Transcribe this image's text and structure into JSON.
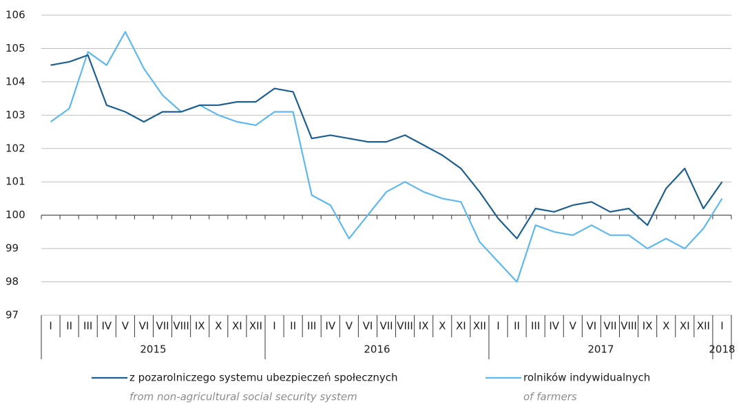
{
  "chart_data": {
    "type": "line",
    "categories": [
      "I",
      "II",
      "III",
      "IV",
      "V",
      "VI",
      "VII",
      "VIII",
      "IX",
      "X",
      "XI",
      "XII",
      "I",
      "II",
      "III",
      "IV",
      "V",
      "VI",
      "VII",
      "VIII",
      "IX",
      "X",
      "XI",
      "XII",
      "I",
      "II",
      "III",
      "IV",
      "V",
      "VI",
      "VII",
      "VIII",
      "IX",
      "X",
      "XI",
      "XII",
      "I"
    ],
    "years": [
      "2015",
      "2016",
      "2017",
      "2018"
    ],
    "series": [
      {
        "name": "z pozarolniczego systemu ubezpieczeń społecznych",
        "subtitle": "from non-agricultural social security system",
        "color": "#1b5e8f",
        "values": [
          104.5,
          104.6,
          104.8,
          103.3,
          103.1,
          102.8,
          103.1,
          103.1,
          103.3,
          103.3,
          103.4,
          103.4,
          103.8,
          103.7,
          102.3,
          102.4,
          102.3,
          102.2,
          102.2,
          102.4,
          102.1,
          101.8,
          101.4,
          100.7,
          99.9,
          99.3,
          100.2,
          100.1,
          100.3,
          100.4,
          100.1,
          100.2,
          99.7,
          100.8,
          101.4,
          100.2,
          101.0
        ]
      },
      {
        "name": "rolników indywidualnych",
        "subtitle": "of farmers",
        "color": "#5cb8ee",
        "values": [
          102.8,
          103.2,
          104.9,
          104.5,
          105.5,
          104.4,
          103.6,
          103.1,
          103.3,
          103.0,
          102.8,
          102.7,
          103.1,
          103.1,
          100.6,
          100.3,
          99.3,
          100.0,
          100.7,
          101.0,
          100.7,
          100.5,
          100.4,
          99.2,
          98.6,
          98.0,
          99.7,
          99.5,
          99.4,
          99.7,
          99.4,
          99.4,
          99.0,
          99.3,
          99.0,
          99.6,
          100.5
        ]
      }
    ],
    "ylim": [
      97,
      106
    ],
    "yticks": [
      97,
      98,
      99,
      100,
      101,
      102,
      103,
      104,
      105,
      106
    ],
    "x_axis_at": 100,
    "grid": true
  }
}
